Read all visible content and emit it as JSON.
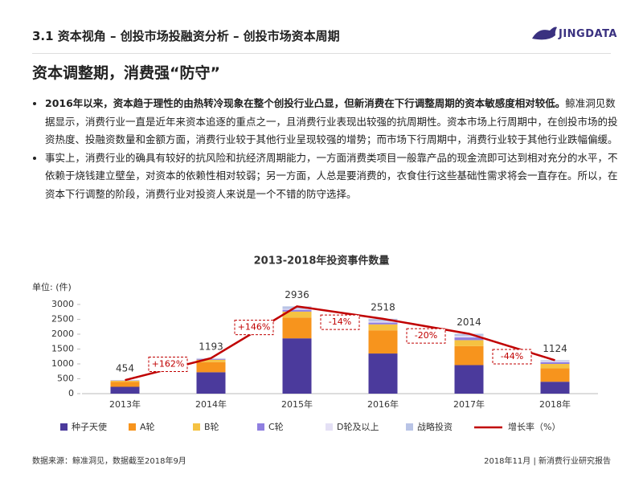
{
  "header": {
    "title": "3.1 资本视角 – 创投市场投融资分析 – 创投市场资本周期",
    "logo": "JINGDATA",
    "subtitle": "资本调整期，消费强“防守”"
  },
  "bullets": [
    {
      "bold": "2016年以来，资本趋于理性的由热转冷现象在整个创投行业凸显，但新消费在下行调整周期的资本敏感度相对较低。",
      "text": "鲸准洞见数据显示，消费行业一直是近年来资本追逐的重点之一，且消费行业表现出较强的抗周期性。资本市场上行周期中，在创投市场的投资热度、投融资数量和金额方面，消费行业较于其他行业呈现较强的增势；而市场下行周期中，消费行业较于其他行业跌幅偏缓。"
    },
    {
      "text": "事实上，消费行业的确具有较好的抗风险和抗经济周期能力，一方面消费类项目一般靠产品的现金流即可达到相对充分的水平，不依赖于烧钱建立壁垒，对资本的依赖性相对较弱；另一方面，人总是要消费的，衣食住行这些基础性需求将会一直存在。所以，在资本下行调整的阶段，消费行业对投资人来说是一个不错的防守选择。"
    }
  ],
  "chart_data": {
    "type": "bar",
    "stacked": true,
    "title": "2013-2018年投资事件数量",
    "y_label": "单位: (件)",
    "categories": [
      "2013年",
      "2014年",
      "2015年",
      "2016年",
      "2017年",
      "2018年"
    ],
    "series": [
      {
        "name": "种子天使",
        "color": "#4b3a9c",
        "values": [
          230,
          720,
          1860,
          1350,
          960,
          400
        ]
      },
      {
        "name": "A轮",
        "color": "#f7941d",
        "values": [
          170,
          340,
          700,
          780,
          640,
          450
        ]
      },
      {
        "name": "B轮",
        "color": "#f5c242",
        "values": [
          35,
          80,
          200,
          200,
          200,
          150
        ]
      },
      {
        "name": "C轮",
        "color": "#8f7fe0",
        "values": [
          10,
          25,
          60,
          60,
          90,
          60
        ]
      },
      {
        "name": "D轮及以上",
        "color": "#e4e0f5",
        "values": [
          5,
          10,
          30,
          40,
          50,
          30
        ]
      },
      {
        "name": "战略投资",
        "color": "#b9c4e6",
        "values": [
          4,
          18,
          86,
          88,
          74,
          34
        ]
      }
    ],
    "totals": [
      454,
      1193,
      2936,
      2518,
      2014,
      1124
    ],
    "growth": {
      "name": "增长率（%）",
      "color": "#c00000",
      "values": [
        null,
        162,
        146,
        -14,
        -20,
        -44
      ],
      "value_labels": [
        null,
        "+162%",
        "+146%",
        "-14%",
        "-20%",
        "-44%"
      ]
    },
    "ylim": [
      0,
      3000
    ],
    "yticks": [
      0,
      500,
      1000,
      1500,
      2000,
      2500,
      3000
    ],
    "grid": false
  },
  "footer": {
    "source": "数据来源：鲸准洞见，数据截至2018年9月",
    "report": "2018年11月 | 新消费行业研究报告"
  }
}
